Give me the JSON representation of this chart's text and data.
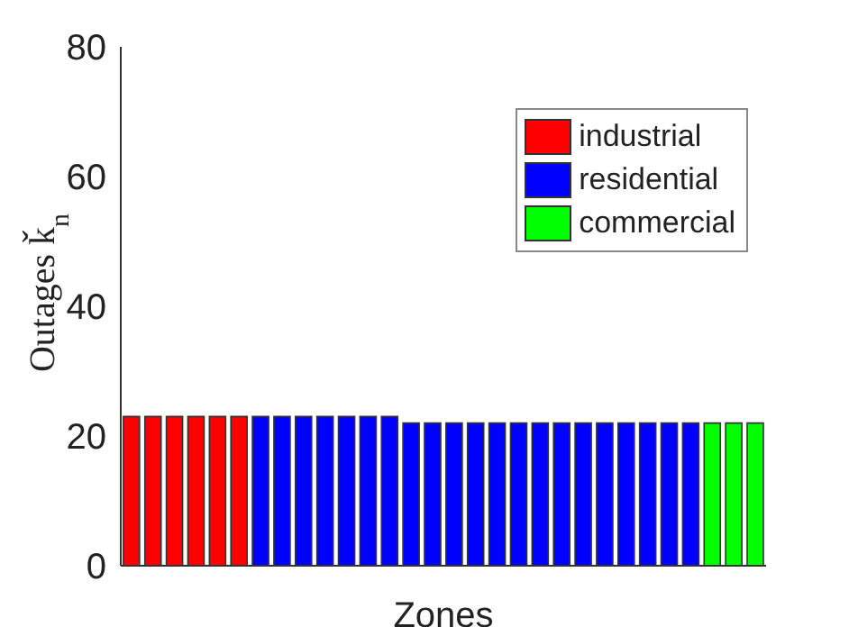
{
  "chart_data": {
    "type": "bar",
    "xlabel": "Zones",
    "ylabel": "Outages ǩ$_{n}$",
    "categories": [
      null,
      null,
      null,
      null,
      null,
      null,
      null,
      null,
      null,
      null,
      null,
      null,
      null,
      null,
      null,
      null,
      null,
      null,
      null,
      null,
      null,
      null,
      null,
      null,
      null,
      null,
      null,
      null,
      null,
      null
    ],
    "series": [
      {
        "name": "industrial",
        "color": "#ff0000",
        "values": [
          23,
          23,
          23,
          23,
          23,
          23,
          null,
          null,
          null,
          null,
          null,
          null,
          null,
          null,
          null,
          null,
          null,
          null,
          null,
          null,
          null,
          null,
          null,
          null,
          null,
          null,
          null,
          null,
          null,
          null
        ]
      },
      {
        "name": "residential",
        "color": "#0000ff",
        "values": [
          null,
          null,
          null,
          null,
          null,
          null,
          23,
          23,
          23,
          23,
          23,
          23,
          23,
          22,
          22,
          22,
          22,
          22,
          22,
          22,
          22,
          22,
          22,
          22,
          22,
          22,
          22,
          null,
          null,
          null
        ]
      },
      {
        "name": "commercial",
        "color": "#00ff00",
        "values": [
          null,
          null,
          null,
          null,
          null,
          null,
          null,
          null,
          null,
          null,
          null,
          null,
          null,
          null,
          null,
          null,
          null,
          null,
          null,
          null,
          null,
          null,
          null,
          null,
          null,
          null,
          null,
          22,
          22,
          22
        ]
      }
    ],
    "stacked": true,
    "ylim": [
      0,
      80
    ],
    "yticks": [
      0,
      20,
      40,
      60,
      80
    ],
    "legend": "top right"
  }
}
